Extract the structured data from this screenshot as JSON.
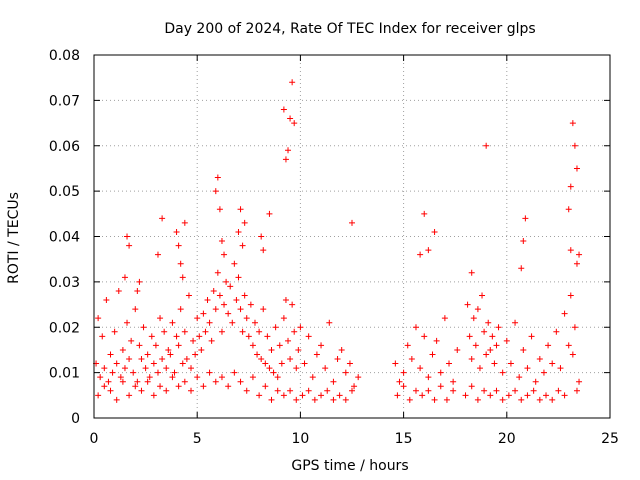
{
  "chart_data": {
    "type": "scatter",
    "title": "Day 200 of 2024, Rate Of TEC Index for receiver glps",
    "xlabel": "GPS time / hours",
    "ylabel": "ROTI / TECUs",
    "xlim": [
      0,
      25
    ],
    "ylim": [
      0,
      0.08
    ],
    "xticks": [
      "0",
      "5",
      "10",
      "15",
      "20",
      "25"
    ],
    "yticks": [
      "0",
      "0.01",
      "0.02",
      "0.03",
      "0.04",
      "0.05",
      "0.06",
      "0.07",
      "0.08"
    ],
    "grid": true,
    "marker": "plus",
    "color": "#ff0000",
    "x": [
      0.1,
      0.2,
      0.3,
      0.4,
      0.5,
      0.6,
      0.7,
      0.8,
      0.9,
      1.0,
      1.1,
      1.2,
      1.3,
      1.4,
      1.5,
      1.6,
      1.7,
      1.8,
      1.9,
      2.0,
      2.1,
      2.2,
      2.3,
      2.4,
      2.5,
      2.6,
      2.7,
      2.8,
      2.9,
      3.0,
      3.1,
      3.2,
      3.3,
      3.4,
      3.5,
      3.6,
      3.7,
      3.8,
      3.9,
      4.0,
      4.1,
      4.2,
      4.3,
      4.4,
      4.5,
      4.6,
      4.7,
      4.8,
      4.9,
      5.0,
      5.1,
      5.2,
      5.3,
      5.4,
      5.5,
      5.6,
      5.7,
      5.8,
      5.9,
      6.0,
      6.1,
      6.2,
      6.3,
      6.4,
      6.5,
      6.6,
      6.7,
      6.8,
      6.9,
      7.0,
      7.1,
      7.2,
      7.3,
      7.4,
      7.5,
      7.6,
      7.7,
      7.8,
      7.9,
      8.0,
      8.1,
      8.2,
      8.3,
      8.4,
      8.5,
      8.6,
      8.7,
      8.8,
      8.9,
      9.0,
      9.1,
      9.2,
      9.3,
      9.4,
      9.5,
      9.6,
      9.7,
      9.8,
      9.9,
      10.0,
      10.2,
      10.4,
      10.6,
      10.8,
      11.0,
      11.2,
      11.4,
      11.6,
      11.8,
      12.0,
      12.2,
      12.4,
      12.6,
      12.8,
      14.6,
      14.8,
      15.0,
      15.2,
      15.4,
      15.6,
      15.8,
      16.0,
      16.2,
      16.4,
      16.6,
      16.8,
      17.0,
      17.2,
      17.4,
      17.6,
      18.1,
      18.2,
      18.3,
      18.4,
      18.5,
      18.6,
      18.7,
      18.8,
      18.9,
      19.0,
      19.1,
      19.2,
      19.3,
      19.4,
      19.5,
      19.6,
      19.8,
      20.0,
      20.2,
      20.4,
      20.6,
      20.8,
      21.0,
      21.2,
      21.4,
      21.6,
      21.8,
      22.0,
      22.2,
      22.4,
      22.6,
      22.8,
      23.0,
      23.1,
      23.2,
      23.3,
      23.4,
      23.5,
      0.2,
      0.5,
      0.8,
      1.1,
      1.4,
      1.7,
      2.0,
      2.3,
      2.6,
      2.9,
      3.2,
      3.5,
      3.8,
      4.1,
      4.4,
      4.7,
      5.0,
      5.3,
      5.6,
      5.9,
      6.2,
      6.5,
      6.8,
      7.1,
      7.4,
      7.7,
      8.0,
      8.3,
      8.6,
      8.9,
      9.2,
      9.5,
      9.8,
      10.1,
      10.4,
      10.7,
      11.0,
      11.3,
      11.6,
      11.9,
      12.2,
      12.5,
      14.7,
      15.0,
      15.3,
      15.6,
      15.9,
      16.2,
      16.5,
      16.8,
      17.1,
      17.4,
      18.0,
      18.3,
      18.6,
      18.9,
      19.2,
      19.5,
      19.8,
      20.1,
      20.4,
      20.7,
      21.0,
      21.3,
      21.6,
      21.9,
      22.2,
      22.5,
      22.8,
      23.1,
      23.4,
      1.5,
      1.6,
      1.7,
      2.1,
      2.2,
      3.1,
      3.3,
      4.0,
      4.1,
      4.2,
      4.3,
      4.4,
      5.9,
      6.0,
      6.1,
      6.2,
      6.3,
      7.0,
      7.1,
      7.2,
      7.3,
      8.1,
      8.2,
      8.5,
      9.2,
      9.3,
      9.4,
      9.5,
      9.6,
      9.7,
      12.5,
      15.8,
      16.0,
      16.2,
      16.5,
      18.3,
      19.0,
      20.7,
      20.8,
      20.9,
      23.0,
      23.1,
      23.2,
      23.3,
      23.4,
      23.5
    ],
    "y": [
      0.012,
      0.022,
      0.009,
      0.018,
      0.011,
      0.026,
      0.008,
      0.014,
      0.01,
      0.019,
      0.012,
      0.028,
      0.009,
      0.015,
      0.011,
      0.021,
      0.013,
      0.017,
      0.01,
      0.024,
      0.008,
      0.016,
      0.013,
      0.02,
      0.011,
      0.014,
      0.009,
      0.018,
      0.012,
      0.016,
      0.01,
      0.022,
      0.013,
      0.019,
      0.011,
      0.015,
      0.014,
      0.021,
      0.01,
      0.018,
      0.016,
      0.024,
      0.012,
      0.019,
      0.013,
      0.027,
      0.011,
      0.017,
      0.014,
      0.022,
      0.018,
      0.015,
      0.023,
      0.019,
      0.026,
      0.021,
      0.017,
      0.028,
      0.024,
      0.032,
      0.027,
      0.019,
      0.025,
      0.03,
      0.023,
      0.029,
      0.021,
      0.034,
      0.026,
      0.031,
      0.024,
      0.019,
      0.027,
      0.022,
      0.018,
      0.025,
      0.016,
      0.021,
      0.014,
      0.019,
      0.013,
      0.024,
      0.012,
      0.018,
      0.011,
      0.015,
      0.01,
      0.02,
      0.009,
      0.016,
      0.012,
      0.022,
      0.026,
      0.017,
      0.013,
      0.025,
      0.019,
      0.011,
      0.015,
      0.02,
      0.012,
      0.018,
      0.009,
      0.014,
      0.016,
      0.011,
      0.021,
      0.008,
      0.013,
      0.015,
      0.01,
      0.012,
      0.007,
      0.009,
      0.012,
      0.008,
      0.01,
      0.016,
      0.013,
      0.02,
      0.011,
      0.018,
      0.009,
      0.014,
      0.017,
      0.01,
      0.022,
      0.012,
      0.008,
      0.015,
      0.025,
      0.018,
      0.013,
      0.022,
      0.016,
      0.024,
      0.011,
      0.027,
      0.019,
      0.014,
      0.021,
      0.015,
      0.018,
      0.012,
      0.016,
      0.02,
      0.01,
      0.017,
      0.012,
      0.021,
      0.009,
      0.015,
      0.011,
      0.018,
      0.008,
      0.013,
      0.01,
      0.016,
      0.012,
      0.019,
      0.011,
      0.023,
      0.016,
      0.027,
      0.014,
      0.02,
      0.006,
      0.008,
      0.005,
      0.007,
      0.006,
      0.004,
      0.008,
      0.005,
      0.007,
      0.006,
      0.008,
      0.005,
      0.007,
      0.006,
      0.009,
      0.007,
      0.008,
      0.006,
      0.009,
      0.007,
      0.01,
      0.008,
      0.009,
      0.007,
      0.01,
      0.008,
      0.006,
      0.009,
      0.005,
      0.007,
      0.004,
      0.006,
      0.005,
      0.006,
      0.004,
      0.005,
      0.006,
      0.004,
      0.005,
      0.006,
      0.004,
      0.005,
      0.004,
      0.006,
      0.005,
      0.007,
      0.004,
      0.006,
      0.005,
      0.006,
      0.004,
      0.007,
      0.004,
      0.006,
      0.005,
      0.007,
      0.004,
      0.006,
      0.005,
      0.006,
      0.004,
      0.005,
      0.006,
      0.004,
      0.005,
      0.006,
      0.004,
      0.005,
      0.004,
      0.006,
      0.005,
      0.037,
      0.034,
      0.031,
      0.04,
      0.038,
      0.028,
      0.03,
      0.036,
      0.044,
      0.041,
      0.038,
      0.034,
      0.031,
      0.043,
      0.05,
      0.053,
      0.046,
      0.039,
      0.036,
      0.041,
      0.046,
      0.038,
      0.043,
      0.04,
      0.037,
      0.045,
      0.068,
      0.057,
      0.059,
      0.066,
      0.074,
      0.065,
      0.043,
      0.036,
      0.045,
      0.037,
      0.041,
      0.032,
      0.06,
      0.033,
      0.039,
      0.044,
      0.046,
      0.051,
      0.065,
      0.06,
      0.055,
      0.036
    ]
  }
}
